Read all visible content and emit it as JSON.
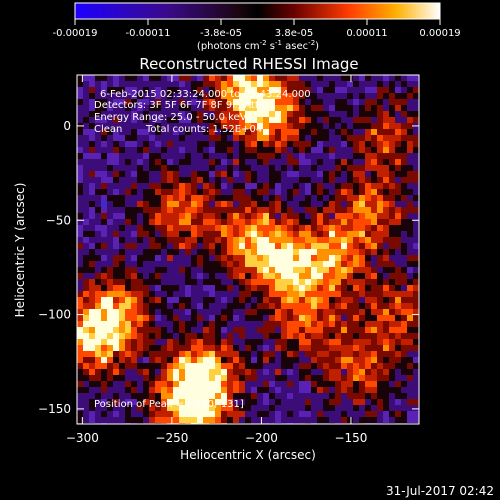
{
  "chart_data": {
    "type": "heatmap",
    "title": "Reconstructed RHESSI Image",
    "xlabel": "Heliocentric X (arcsec)",
    "ylabel": "Heliocentric Y (arcsec)",
    "xlim": [
      -303,
      -112
    ],
    "ylim": [
      -158,
      27
    ],
    "xticks": [
      -300,
      -250,
      -200,
      -150
    ],
    "yticks": [
      0,
      -50,
      -100,
      -150
    ],
    "colorbar": {
      "ticks": [
        "-0.00019",
        "-0.00011",
        "-3.8e-05",
        "3.8e-05",
        "0.00011",
        "0.00019"
      ],
      "range": [
        -0.00019,
        0.00019
      ],
      "units_prefix": "(photons cm",
      "units_exp1": "-2",
      "units_mid": " s",
      "units_exp2": "-1",
      "units_mid2": " asec",
      "units_exp3": "-2",
      "units_suffix": ")"
    },
    "annotations": {
      "line1": "6-Feb-2015 02:33:24.000 to 02:43:24.000",
      "line2": "Detectors: 3F 5F 6F 7F 8F 9F, Att 0",
      "line3": "Energy Range: 25.0 - 50.0 keV",
      "line4_method": "Clean",
      "line4_counts": "Total counts: 1.52E+04",
      "peak": "Position of Peak = [-230,-131]"
    },
    "peak_position": [
      -230,
      -131
    ],
    "hot_regions": [
      {
        "x": -292,
        "y": -112,
        "strength": 0.95
      },
      {
        "x": -280,
        "y": -95,
        "strength": 0.6
      },
      {
        "x": -233,
        "y": -133,
        "strength": 1.0
      },
      {
        "x": -240,
        "y": -150,
        "strength": 0.85
      },
      {
        "x": -210,
        "y": 20,
        "strength": 0.85
      },
      {
        "x": -195,
        "y": 5,
        "strength": 0.75
      },
      {
        "x": -245,
        "y": -45,
        "strength": 0.7
      },
      {
        "x": -205,
        "y": -60,
        "strength": 0.8
      },
      {
        "x": -185,
        "y": -75,
        "strength": 0.75
      },
      {
        "x": -160,
        "y": -70,
        "strength": 0.7
      },
      {
        "x": -140,
        "y": -45,
        "strength": 0.65
      },
      {
        "x": -125,
        "y": -100,
        "strength": 0.55
      },
      {
        "x": -175,
        "y": -105,
        "strength": 0.6
      },
      {
        "x": -145,
        "y": -130,
        "strength": 0.55
      },
      {
        "x": -130,
        "y": -5,
        "strength": 0.5
      }
    ]
  },
  "footer": {
    "date": "31-Jul-2017 02:42"
  }
}
